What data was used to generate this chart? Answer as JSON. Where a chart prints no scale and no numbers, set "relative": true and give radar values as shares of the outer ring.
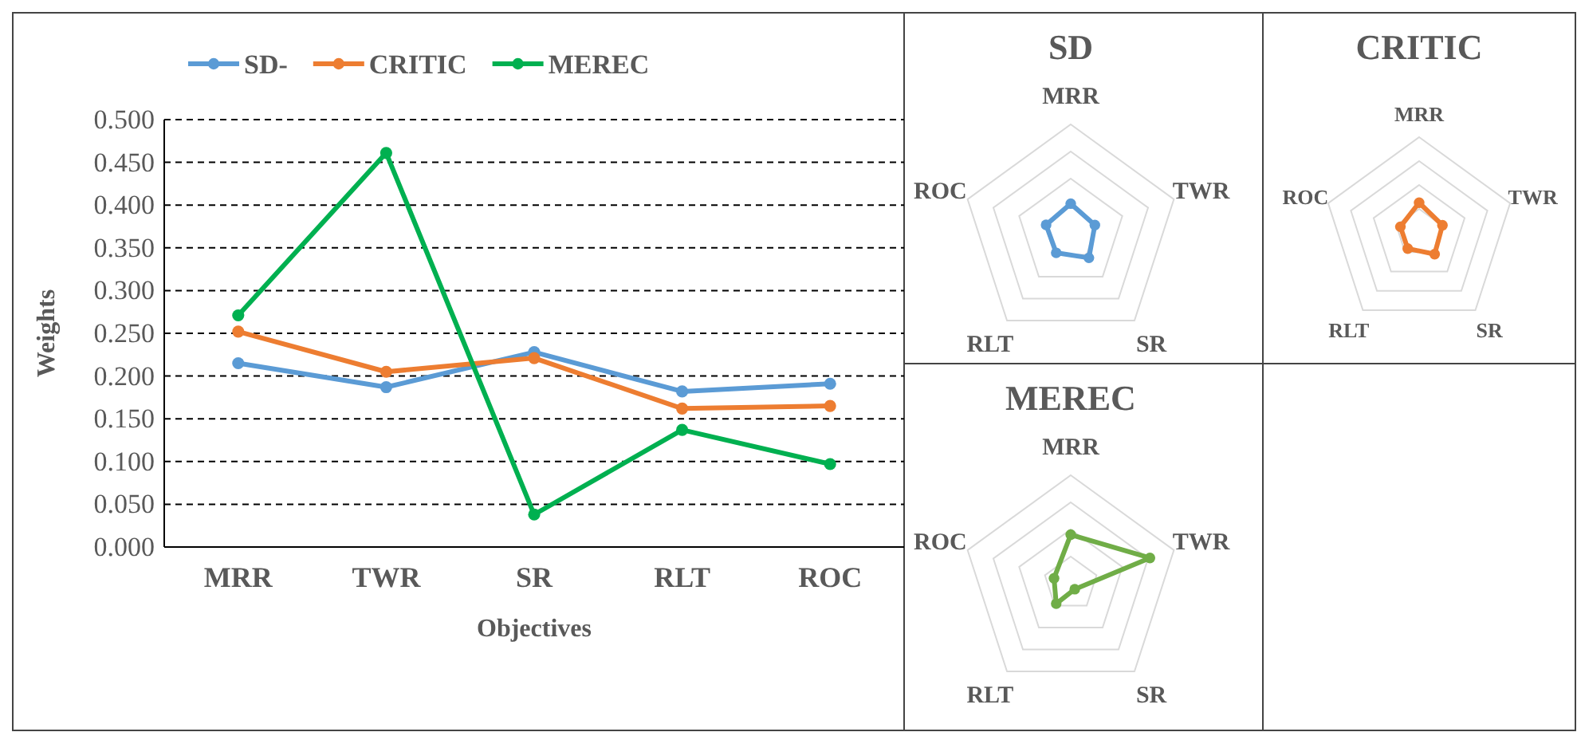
{
  "chart_data": [
    {
      "type": "line",
      "categories": [
        "MRR",
        "TWR",
        "SR",
        "RLT",
        "ROC"
      ],
      "xlabel": "Objectives",
      "ylabel": "Weights",
      "ylim": [
        0,
        0.5
      ],
      "yticks": [
        {
          "value": 0,
          "label": "0.000"
        },
        {
          "value": 0.05,
          "label": "0.050"
        },
        {
          "value": 0.1,
          "label": "0.100"
        },
        {
          "value": 0.15,
          "label": "0.150"
        },
        {
          "value": 0.2,
          "label": "0.200"
        },
        {
          "value": 0.25,
          "label": "0.250"
        },
        {
          "value": 0.3,
          "label": "0.300"
        },
        {
          "value": 0.35,
          "label": "0.350"
        },
        {
          "value": 0.4,
          "label": "0.400"
        },
        {
          "value": 0.45,
          "label": "0.450"
        },
        {
          "value": 0.5,
          "label": "0.500"
        }
      ],
      "grid": "y",
      "legend": "top",
      "marker": "circle",
      "series": [
        {
          "name": "SD-",
          "color": "#5b9bd5",
          "values": [
            0.215,
            0.187,
            0.228,
            0.182,
            0.191
          ]
        },
        {
          "name": "CRITIC",
          "color": "#ed7d31",
          "values": [
            0.252,
            0.205,
            0.221,
            0.162,
            0.165
          ]
        },
        {
          "name": "MEREC",
          "color": "#00b050",
          "values": [
            0.271,
            0.461,
            0.038,
            0.137,
            0.097
          ]
        }
      ]
    },
    {
      "type": "radar",
      "title": "SD",
      "relative": true,
      "categories": [
        "MRR",
        "TWR",
        "SR",
        "RLT",
        "ROC"
      ],
      "marker": "circle",
      "series": [
        {
          "color": "#5b9bd5",
          "values": [
            0.269,
            0.234,
            0.285,
            0.228,
            0.239
          ]
        }
      ]
    },
    {
      "type": "radar",
      "title": "CRITIC",
      "relative": true,
      "categories": [
        "MRR",
        "TWR",
        "SR",
        "RLT",
        "ROC"
      ],
      "marker": "circle",
      "series": [
        {
          "color": "#ed7d31",
          "values": [
            0.315,
            0.256,
            0.276,
            0.203,
            0.206
          ]
        }
      ]
    },
    {
      "type": "radar",
      "title": "MEREC",
      "relative": true,
      "categories": [
        "MRR",
        "TWR",
        "SR",
        "RLT",
        "ROC"
      ],
      "marker": "circle",
      "series": [
        {
          "color": "#70ad47",
          "values": [
            0.452,
            0.768,
            0.063,
            0.228,
            0.162
          ]
        }
      ]
    }
  ]
}
